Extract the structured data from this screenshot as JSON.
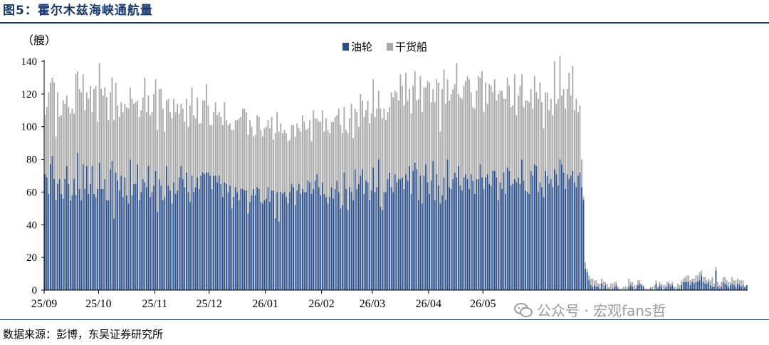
{
  "figure": {
    "title": "图5：霍尔木兹海峡通航量",
    "source": "数据来源：彭博，东吴证券研究所",
    "watermark": "公众号 · 宏观fans哲"
  },
  "chart_data": {
    "type": "bar",
    "stacked": true,
    "title": "",
    "ylabel": "（艘）",
    "ylim": [
      0,
      140
    ],
    "yticks": [
      0,
      20,
      40,
      60,
      80,
      100,
      120,
      140
    ],
    "xtick_labels": [
      "25/09",
      "25/10",
      "25/11",
      "25/12",
      "26/01",
      "26/02",
      "26/03",
      "26/04",
      "26/05"
    ],
    "xtick_index": [
      0,
      30,
      61,
      91,
      122,
      153,
      181,
      212,
      242
    ],
    "legend_position": "top-center",
    "colors": {
      "oil": "#2b4f8a",
      "dry": "#a9a9a9"
    },
    "series": [
      {
        "name": "油轮",
        "values": [
          71,
          69,
          59,
          77,
          82,
          68,
          55,
          65,
          68,
          59,
          56,
          68,
          76,
          65,
          55,
          58,
          68,
          58,
          84,
          62,
          55,
          77,
          62,
          76,
          59,
          65,
          76,
          59,
          57,
          62,
          78,
          62,
          62,
          68,
          55,
          55,
          74,
          79,
          44,
          72,
          67,
          61,
          70,
          57,
          69,
          58,
          53,
          80,
          58,
          65,
          65,
          77,
          55,
          60,
          68,
          66,
          63,
          76,
          57,
          60,
          64,
          73,
          48,
          68,
          64,
          55,
          57,
          76,
          64,
          61,
          53,
          66,
          59,
          61,
          69,
          76,
          68,
          63,
          72,
          60,
          54,
          70,
          60,
          63,
          69,
          62,
          70,
          72,
          71,
          72,
          72,
          70,
          62,
          70,
          70,
          66,
          70,
          65,
          57,
          66,
          65,
          60,
          64,
          50,
          57,
          63,
          60,
          55,
          62,
          62,
          61,
          61,
          47,
          54,
          58,
          62,
          58,
          63,
          62,
          54,
          53,
          55,
          56,
          63,
          54,
          61,
          61,
          44,
          60,
          42,
          60,
          59,
          60,
          57,
          53,
          60,
          65,
          63,
          52,
          61,
          65,
          59,
          62,
          60,
          60,
          67,
          66,
          59,
          62,
          67,
          71,
          63,
          58,
          66,
          59,
          57,
          53,
          57,
          63,
          56,
          62,
          67,
          60,
          50,
          52,
          72,
          62,
          49,
          63,
          60,
          55,
          74,
          62,
          65,
          70,
          74,
          59,
          67,
          66,
          55,
          61,
          75,
          60,
          63,
          80,
          51,
          49,
          60,
          60,
          68,
          72,
          63,
          60,
          71,
          66,
          68,
          68,
          69,
          62,
          71,
          67,
          76,
          59,
          73,
          78,
          74,
          55,
          70,
          53,
          70,
          77,
          66,
          59,
          67,
          79,
          55,
          71,
          64,
          53,
          58,
          69,
          55,
          80,
          63,
          62,
          68,
          72,
          69,
          76,
          64,
          61,
          69,
          71,
          68,
          62,
          71,
          67,
          59,
          68,
          68,
          77,
          69,
          62,
          69,
          71,
          65,
          64,
          73,
          73,
          69,
          55,
          66,
          62,
          72,
          59,
          75,
          73,
          64,
          65,
          68,
          66,
          69,
          65,
          80,
          67,
          61,
          60,
          59,
          73,
          70,
          77,
          76,
          60,
          66,
          63,
          57,
          73,
          70,
          65,
          68,
          63,
          74,
          71,
          64,
          80,
          77,
          72,
          62,
          71,
          68,
          70,
          73,
          66,
          63,
          70,
          72,
          63,
          55,
          13,
          11,
          6,
          3,
          2,
          3,
          2,
          2,
          1,
          4,
          1,
          3,
          1,
          1,
          0,
          1,
          2,
          3,
          1,
          0,
          0,
          0,
          0,
          0,
          2,
          3,
          2,
          0,
          1,
          3,
          4,
          3,
          2,
          0,
          0,
          0,
          1,
          0,
          0,
          4,
          1,
          3,
          2,
          0,
          1,
          2,
          4,
          2,
          3,
          1,
          0,
          1,
          1,
          3,
          5,
          5,
          5,
          5,
          3,
          5,
          4,
          5,
          5,
          6,
          9,
          5,
          4,
          4,
          5,
          3,
          2,
          2,
          12,
          2,
          1,
          2,
          5,
          4,
          3,
          2,
          3,
          4,
          3,
          2,
          4,
          3,
          2,
          3,
          2,
          3
        ]
      },
      {
        "name": "干货船",
        "values": [
          36,
          43,
          62,
          50,
          48,
          59,
          39,
          56,
          38,
          48,
          60,
          46,
          43,
          47,
          53,
          53,
          40,
          74,
          50,
          61,
          66,
          55,
          48,
          45,
          58,
          60,
          33,
          64,
          68,
          41,
          61,
          61,
          57,
          56,
          63,
          49,
          47,
          51,
          60,
          55,
          46,
          45,
          45,
          52,
          45,
          54,
          58,
          44,
          59,
          49,
          50,
          39,
          51,
          50,
          50,
          64,
          46,
          43,
          50,
          49,
          56,
          56,
          50,
          55,
          59,
          56,
          40,
          40,
          53,
          48,
          52,
          51,
          50,
          53,
          39,
          38,
          43,
          40,
          45,
          40,
          59,
          54,
          47,
          42,
          49,
          40,
          32,
          44,
          45,
          54,
          41,
          31,
          39,
          39,
          45,
          41,
          39,
          41,
          44,
          49,
          39,
          41,
          38,
          48,
          41,
          41,
          44,
          50,
          44,
          49,
          50,
          48,
          48,
          50,
          42,
          32,
          37,
          44,
          44,
          44,
          41,
          44,
          44,
          41,
          45,
          45,
          31,
          52,
          49,
          55,
          42,
          37,
          38,
          39,
          38,
          32,
          36,
          38,
          42,
          41,
          34,
          38,
          45,
          43,
          38,
          32,
          38,
          32,
          48,
          38,
          34,
          40,
          45,
          44,
          38,
          48,
          45,
          39,
          40,
          47,
          44,
          40,
          51,
          51,
          44,
          40,
          36,
          47,
          42,
          54,
          38,
          37,
          47,
          35,
          50,
          42,
          47,
          43,
          50,
          47,
          47,
          54,
          46,
          48,
          42,
          60,
          56,
          51,
          44,
          41,
          40,
          58,
          58,
          51,
          55,
          48,
          64,
          56,
          51,
          62,
          49,
          47,
          49,
          52,
          56,
          42,
          62,
          61,
          56,
          54,
          47,
          62,
          68,
          48,
          44,
          60,
          58,
          63,
          44,
          65,
          66,
          59,
          49,
          53,
          58,
          55,
          54,
          70,
          44,
          54,
          56,
          56,
          57,
          63,
          67,
          50,
          45,
          52,
          54,
          63,
          53,
          65,
          47,
          58,
          43,
          61,
          61,
          48,
          56,
          47,
          65,
          56,
          60,
          45,
          58,
          55,
          52,
          48,
          48,
          64,
          41,
          50,
          60,
          52,
          45,
          55,
          56,
          56,
          50,
          41,
          54,
          45,
          57,
          61,
          52,
          42,
          48,
          51,
          45,
          49,
          44,
          66,
          43,
          53,
          63,
          42,
          51,
          49,
          52,
          65,
          49,
          64,
          44,
          54,
          39,
          41,
          17,
          2,
          4,
          2,
          3,
          4,
          5,
          3,
          4,
          2,
          3,
          3,
          4,
          2,
          3,
          1,
          4,
          3,
          3,
          2,
          1,
          1,
          1,
          2,
          2,
          2,
          5,
          2,
          3,
          3,
          2,
          3,
          2,
          1,
          1,
          1,
          1,
          1,
          1,
          2,
          3,
          2,
          1,
          2,
          2,
          3,
          2,
          3,
          1,
          2,
          2,
          1,
          2,
          3,
          2,
          3,
          2,
          3,
          4,
          4,
          3,
          2,
          3,
          4,
          4,
          5,
          3,
          3,
          4,
          2,
          2,
          3,
          6,
          2,
          2,
          3,
          2,
          3,
          3,
          4,
          3,
          3,
          2,
          4,
          3,
          4,
          3,
          3,
          4,
          3
        ]
      }
    ]
  }
}
